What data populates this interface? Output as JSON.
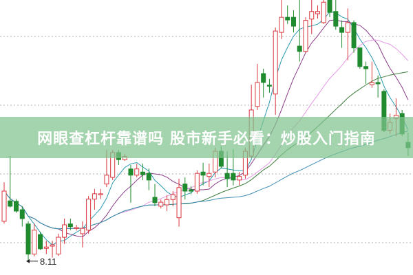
{
  "banner": {
    "title": "网眼查杠杆靠谱吗 股市新手必看：炒股入门指南"
  },
  "colors": {
    "up": "#d9363e",
    "down": "#1f8a2e",
    "banner": "#80c48e",
    "grid": "#b0b0b0",
    "ma": [
      "#2a98b0",
      "#8a3a86",
      "#e59ae6",
      "#3c7d3c",
      "#3b8db5"
    ]
  },
  "chart_data": {
    "type": "candlestick",
    "title": "",
    "grid": true,
    "ylim": [
      8.0,
      14.0
    ],
    "moving_average_periods": [
      5,
      10,
      20,
      30,
      60
    ],
    "annotations": [
      {
        "label": "8.11",
        "candle_index": 4,
        "value": 8.11
      }
    ],
    "ohlc": [
      [
        9.01,
        9.89,
        8.96,
        9.69
      ],
      [
        9.47,
        10.48,
        9.32,
        9.35
      ],
      [
        9.46,
        9.51,
        9.2,
        9.24
      ],
      [
        9.27,
        9.35,
        8.89,
        9.07
      ],
      [
        8.95,
        9.01,
        8.11,
        8.27
      ],
      [
        8.27,
        8.96,
        8.22,
        8.81
      ],
      [
        8.71,
        8.77,
        8.36,
        8.39
      ],
      [
        8.4,
        8.57,
        8.27,
        8.43
      ],
      [
        8.45,
        8.57,
        8.19,
        8.48
      ],
      [
        8.27,
        8.73,
        8.23,
        8.65
      ],
      [
        8.65,
        9.07,
        8.5,
        8.93
      ],
      [
        8.95,
        9.07,
        8.81,
        8.89
      ],
      [
        8.85,
        8.93,
        8.8,
        8.87
      ],
      [
        8.73,
        9.01,
        8.42,
        8.85
      ],
      [
        8.81,
        9.58,
        8.73,
        9.51
      ],
      [
        9.51,
        9.74,
        9.27,
        9.63
      ],
      [
        9.61,
        9.74,
        9.51,
        9.63
      ],
      [
        9.85,
        10.62,
        9.78,
        10.05
      ],
      [
        10.0,
        10.62,
        9.94,
        10.56
      ],
      [
        10.56,
        10.62,
        10.28,
        10.4
      ],
      [
        10.4,
        10.53,
        10.37,
        10.47
      ],
      [
        10.19,
        10.28,
        9.43,
        10.05
      ],
      [
        10.05,
        10.31,
        10.0,
        10.19
      ],
      [
        10.12,
        10.31,
        9.94,
        10.06
      ],
      [
        10.09,
        10.2,
        9.71,
        9.94
      ],
      [
        9.55,
        9.85,
        9.35,
        9.43
      ],
      [
        9.35,
        9.5,
        9.3,
        9.44
      ],
      [
        9.38,
        9.6,
        9.24,
        9.5
      ],
      [
        9.5,
        9.69,
        9.35,
        9.61
      ],
      [
        9.09,
        9.97,
        8.89,
        9.77
      ],
      [
        9.85,
        10.0,
        9.5,
        9.69
      ],
      [
        9.72,
        9.8,
        9.62,
        9.69
      ],
      [
        9.69,
        10.16,
        9.63,
        10.09
      ],
      [
        10.12,
        10.33,
        9.82,
        10.05
      ],
      [
        10.02,
        10.31,
        9.78,
        10.09
      ],
      [
        10.12,
        10.67,
        10.0,
        10.59
      ],
      [
        10.59,
        10.7,
        10.2,
        10.25
      ],
      [
        10.09,
        10.59,
        9.78,
        9.97
      ],
      [
        10.09,
        10.64,
        9.82,
        9.94
      ],
      [
        9.94,
        10.12,
        9.82,
        10.02
      ],
      [
        10.05,
        10.67,
        9.97,
        10.59
      ],
      [
        10.48,
        12.09,
        10.44,
        11.52
      ],
      [
        11.6,
        12.56,
        11.52,
        12.14
      ],
      [
        12.34,
        12.45,
        11.8,
        12.14
      ],
      [
        12.08,
        12.22,
        11.91,
        12.06
      ],
      [
        11.88,
        13.38,
        11.41,
        13.3
      ],
      [
        13.27,
        14.0,
        13.12,
        13.61
      ],
      [
        13.61,
        13.88,
        13.46,
        13.55
      ],
      [
        13.61,
        13.77,
        13.27,
        13.41
      ],
      [
        12.96,
        14.0,
        12.61,
        12.84
      ],
      [
        12.84,
        13.61,
        12.81,
        13.54
      ],
      [
        13.57,
        14.0,
        13.23,
        13.74
      ],
      [
        13.69,
        13.88,
        13.58,
        13.74
      ],
      [
        13.49,
        14.0,
        13.46,
        13.95
      ],
      [
        14.0,
        14.0,
        13.61,
        13.72
      ],
      [
        13.74,
        14.0,
        13.33,
        13.41
      ],
      [
        13.38,
        13.54,
        12.92,
        13.27
      ],
      [
        13.27,
        13.81,
        12.64,
        13.49
      ],
      [
        13.49,
        13.54,
        12.81,
        12.92
      ],
      [
        12.92,
        12.92,
        12.45,
        12.5
      ],
      [
        12.5,
        12.61,
        12.11,
        12.45
      ],
      [
        12.09,
        12.61,
        12.02,
        12.14
      ],
      [
        12.14,
        12.3,
        11.8,
        12.11
      ],
      [
        11.94,
        11.99,
        11.02,
        11.06
      ],
      [
        11.06,
        11.44,
        10.98,
        11.24
      ],
      [
        11.33,
        11.78,
        10.93,
        11.4
      ],
      [
        11.44,
        11.52,
        10.93,
        10.98
      ],
      [
        10.79,
        11.01,
        10.48,
        10.67
      ]
    ]
  }
}
